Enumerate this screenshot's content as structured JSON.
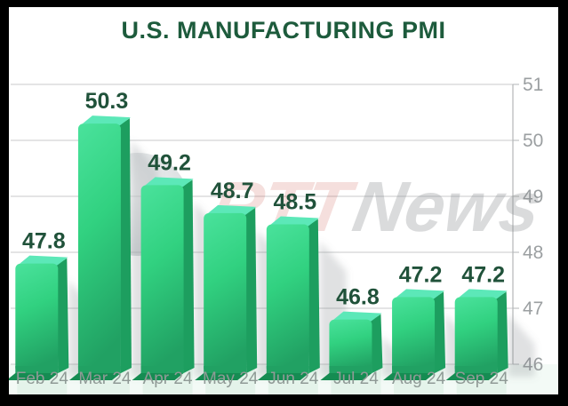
{
  "watermark": {
    "part1": "RTT",
    "part2": "News"
  },
  "chart_data": {
    "type": "bar",
    "title": "U.S. MANUFACTURING PMI",
    "categories": [
      "Feb 24",
      "Mar 24",
      "Apr 24",
      "May 24",
      "Jun 24",
      "Jul 24",
      "Aug 24",
      "Sep 24"
    ],
    "values": [
      47.8,
      50.3,
      49.2,
      48.7,
      48.5,
      46.8,
      47.2,
      47.2
    ],
    "xlabel": "",
    "ylabel": "",
    "ylim": [
      46,
      51
    ],
    "yticks": [
      51,
      50,
      49,
      48,
      47,
      46
    ],
    "grid": true,
    "axis_side": "right",
    "value_labels_shown": true,
    "legend": "none",
    "colors": {
      "title_green": "#1d5b3c",
      "value_label_green": "#20523a",
      "bar_front": "#31d180",
      "bar_front_light": "#4ae29c",
      "bar_front_dark": "#21a163",
      "bar_top": "#5ce8b8",
      "bar_side": "#1d9e5f",
      "bar_foot": "#158c52",
      "grid_gray": "#c8cacb",
      "axis_gray": "#b3b6b7",
      "tick_label_gray": "#9b9fa1",
      "x_label_gray": "#8f9a96",
      "watermark_red": "#c0392b",
      "watermark_gray": "#85898c",
      "stripe_mint": "#e4f3ea",
      "footer_tint": "#f3faf6",
      "frame_black": "#000000"
    }
  }
}
